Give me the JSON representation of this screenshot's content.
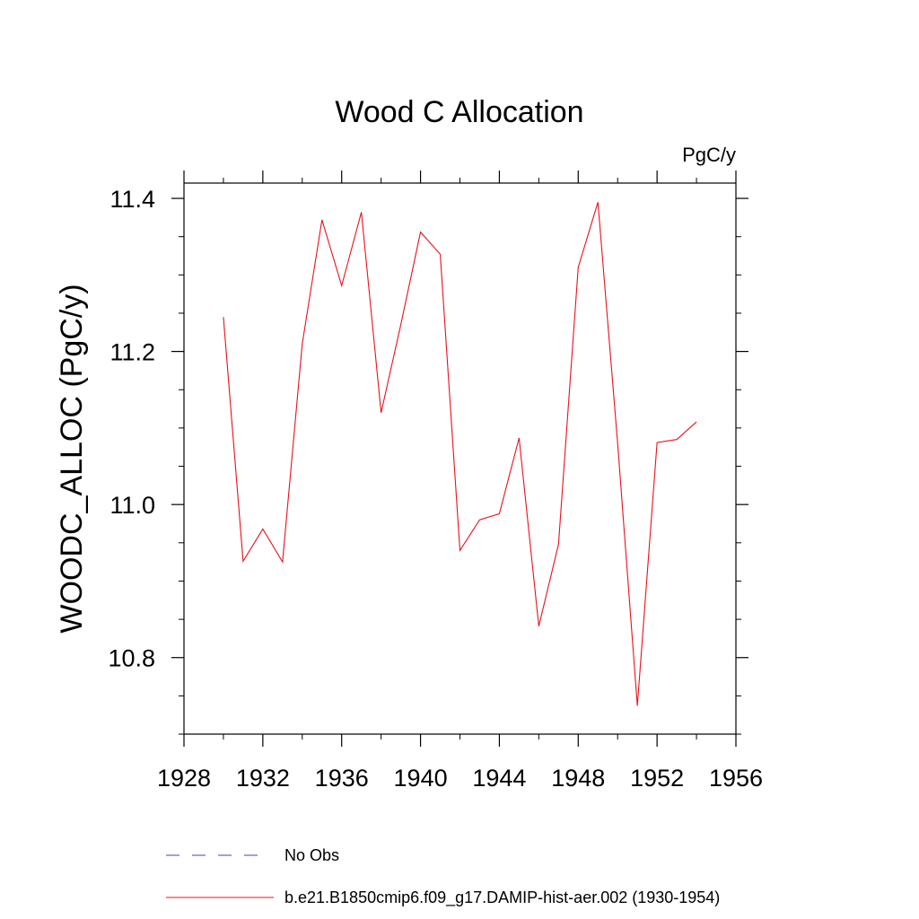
{
  "chart_data": {
    "type": "line",
    "title": "Wood C Allocation",
    "units_label": "PgC/y",
    "ylabel": "WOODC_ALLOC  (PgC/y)",
    "xlabel": "",
    "xlim": [
      1928,
      1956
    ],
    "ylim": [
      10.7,
      11.42
    ],
    "x_ticks": [
      1928,
      1932,
      1936,
      1940,
      1944,
      1948,
      1952,
      1956
    ],
    "x_minor_step": 2,
    "y_ticks": [
      10.8,
      11.0,
      11.2,
      11.4
    ],
    "y_tick_labels": [
      "10.8",
      "11.0",
      "11.2",
      "11.4"
    ],
    "y_minor_step": 0.05,
    "grid": false,
    "legend_position": "bottom",
    "series": [
      {
        "name": "b.e21.B1850cmip6.f09_g17.DAMIP-hist-aer.002 (1930-1954)",
        "color": "#e8111b",
        "dash": "solid",
        "x": [
          1930,
          1931,
          1932,
          1933,
          1934,
          1935,
          1936,
          1937,
          1938,
          1939,
          1940,
          1941,
          1942,
          1943,
          1944,
          1945,
          1946,
          1947,
          1948,
          1949,
          1950,
          1951,
          1952,
          1953,
          1954
        ],
        "y": [
          11.245,
          10.926,
          10.968,
          10.925,
          11.21,
          11.372,
          11.286,
          11.382,
          11.12,
          11.235,
          11.356,
          11.327,
          10.94,
          10.98,
          10.988,
          11.087,
          10.841,
          10.948,
          11.31,
          11.395,
          11.08,
          10.737,
          11.081,
          11.085,
          11.108
        ]
      }
    ],
    "legend_entries": [
      {
        "name": "No Obs",
        "color": "#4b3fb3",
        "dash": "dashed"
      },
      {
        "name": "b.e21.B1850cmip6.f09_g17.DAMIP-hist-aer.002 (1930-1954)",
        "color": "#e8111b",
        "dash": "solid"
      }
    ]
  }
}
